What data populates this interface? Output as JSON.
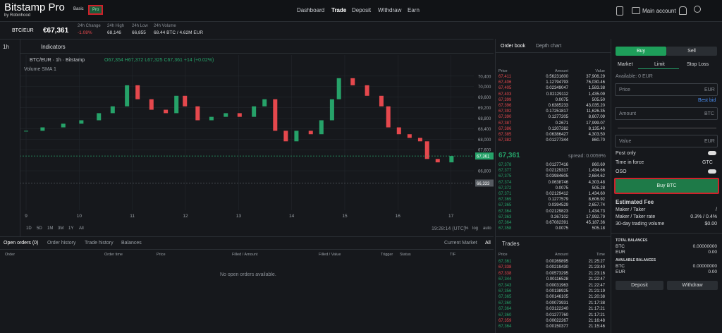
{
  "header": {
    "brand": "Bitstamp Pro",
    "brand_sub": "by Robinhood",
    "modes": [
      "Basic",
      "Pro"
    ],
    "nav": [
      "Dashboard",
      "Trade",
      "Deposit",
      "Withdraw",
      "Earn"
    ],
    "account": "Main account"
  },
  "ticker": {
    "pair": "BTC/EUR",
    "price": "€67,361",
    "stats": [
      {
        "label": "24h Change",
        "value": "-1.08%"
      },
      {
        "label": "24h High",
        "value": "68,146"
      },
      {
        "label": "24h Low",
        "value": "66,855"
      },
      {
        "label": "24h Volume",
        "value": "68.44 BTC / 4.62M EUR"
      }
    ]
  },
  "toolbar": {
    "interval": "1h",
    "indicators": "Indicators"
  },
  "legend": {
    "symbol": "BTC/EUR · 1h · Bitstamp",
    "ohlc": "O67,354 H67,372 L67,325 C67,361 +14 (+0.02%)",
    "volume": "Volume SMA 1"
  },
  "chart_data": {
    "type": "candlestick",
    "x": [
      9.0,
      9.31,
      9.7,
      10.04,
      10.37,
      10.63,
      10.9,
      11.1,
      11.36,
      11.63,
      11.83,
      11.99,
      12.23,
      12.49,
      12.76,
      13.02,
      13.29,
      13.49,
      13.69,
      13.89,
      14.09,
      14.36,
      14.56,
      14.76,
      14.89,
      15.15,
      15.42,
      15.69,
      15.82,
      16.02,
      16.22,
      16.42,
      16.55,
      16.75,
      17.01
    ],
    "values": [
      68320,
      68450,
      68590,
      68720,
      68990,
      69250,
      70050,
      69520,
      69120,
      68990,
      69650,
      69250,
      68720,
      68850,
      68990,
      68850,
      69250,
      69520,
      68320,
      67920,
      68320,
      68190,
      68720,
      69520,
      70320,
      70050,
      69650,
      69250,
      68450,
      68190,
      68050,
      67920,
      67250,
      67120,
      67361
    ],
    "up_color": "#26a269",
    "down_color": "#e5484d",
    "xlim": [
      8.88,
      17.43
    ],
    "xticks": [
      9,
      10,
      11,
      12,
      13,
      14,
      15,
      16,
      17
    ],
    "ylim": [
      65300,
      71200
    ],
    "yticks": [
      {
        "value": 70400,
        "label": "70,400"
      },
      {
        "value": 70000,
        "label": "70,000"
      },
      {
        "value": 69600,
        "label": "69,600"
      },
      {
        "value": 69200,
        "label": "69,200"
      },
      {
        "value": 68800,
        "label": "68,800"
      },
      {
        "value": 68400,
        "label": "68,400"
      },
      {
        "value": 68000,
        "label": "68,000"
      },
      {
        "value": 67600,
        "label": "67,600"
      },
      {
        "value": 66800,
        "label": "66,800"
      }
    ],
    "grid": true,
    "markers": [
      {
        "value": 67361,
        "label": "67,361",
        "color": "#26a269"
      },
      {
        "value": 66333,
        "label": "66,333",
        "color": "#555a60"
      }
    ]
  },
  "chart_footer": {
    "ranges": [
      "1D",
      "5D",
      "1M",
      "3M",
      "1Y",
      "All"
    ],
    "time": "19:28:14 (UTC)",
    "options": [
      "%",
      "log",
      "auto"
    ]
  },
  "orders": {
    "tabs": [
      "Open orders (0)",
      "Order history",
      "Trade history",
      "Balances"
    ],
    "filters": [
      "Current Market",
      "All"
    ],
    "columns": [
      "Order",
      "Order time",
      "Price",
      "Filled / Amount",
      "Filled / Value",
      "Trigger",
      "Status",
      "TIF"
    ],
    "empty": "No open orders available."
  },
  "order_book": {
    "tabs": [
      "Order book",
      "Depth chart"
    ],
    "columns": [
      "Price",
      "Amount",
      "Value"
    ],
    "asks": [
      [
        "67,411",
        "0.56231600",
        "37,906.29"
      ],
      [
        "67,406",
        "1.12794793",
        "76,030.46"
      ],
      [
        "67,405",
        "0.02349047",
        "1,583.38"
      ],
      [
        "67,403",
        "0.02129112",
        "1,435.09"
      ],
      [
        "67,399",
        "0.0075",
        "505.50"
      ],
      [
        "67,396",
        "0.6385233",
        "43,035.20"
      ],
      [
        "67,392",
        "0.17251817",
        "11,626.35"
      ],
      [
        "67,390",
        "0.1277205",
        "8,607.09"
      ],
      [
        "67,387",
        "0.2671",
        "17,999.07"
      ],
      [
        "67,386",
        "0.1207282",
        "8,135.40"
      ],
      [
        "67,385",
        "0.06386427",
        "4,303.50"
      ],
      [
        "67,382",
        "0.01277344",
        "860.70"
      ]
    ],
    "last": "67,361",
    "spread": "spread: 0.0059%",
    "bids": [
      [
        "67,378",
        "0.01277416",
        "860.69"
      ],
      [
        "67,377",
        "0.02129317",
        "1,434.66"
      ],
      [
        "67,375",
        "0.03984605",
        "2,684.62"
      ],
      [
        "67,374",
        "0.0638746",
        "4,303.48"
      ],
      [
        "67,372",
        "0.0075",
        "505.28"
      ],
      [
        "67,371",
        "0.02129412",
        "1,434.60"
      ],
      [
        "67,369",
        "0.1277579",
        "8,606.92"
      ],
      [
        "67,365",
        "0.0394529",
        "2,657.74"
      ],
      [
        "67,364",
        "0.02129823",
        "1,434.73"
      ],
      [
        "67,363",
        "0.267102",
        "17,992.79"
      ],
      [
        "67,364",
        "0.67082391",
        "45,187.36"
      ],
      [
        "67,358",
        "0.0075",
        "505.18"
      ]
    ],
    "ask_color": "#e5484d",
    "bid_color": "#26a269"
  },
  "trades": {
    "title": "Trades",
    "columns": [
      "Price",
      "Amount",
      "Time"
    ],
    "rows": [
      {
        "cells": [
          "67,361",
          "0.00269895",
          "21:25:27"
        ],
        "color": "#26a269"
      },
      {
        "cells": [
          "67,338",
          "0.00219430",
          "21:23:40"
        ],
        "color": "#e5484d"
      },
      {
        "cells": [
          "67,338",
          "0.00573295",
          "21:23:16"
        ],
        "color": "#e5484d"
      },
      {
        "cells": [
          "67,344",
          "0.00116528",
          "21:22:47"
        ],
        "color": "#26a269"
      },
      {
        "cells": [
          "67,343",
          "0.00031963",
          "21:22:47"
        ],
        "color": "#26a269"
      },
      {
        "cells": [
          "67,356",
          "0.00138925",
          "21:21:19"
        ],
        "color": "#26a269"
      },
      {
        "cells": [
          "67,365",
          "0.00146105",
          "21:20:38"
        ],
        "color": "#26a269"
      },
      {
        "cells": [
          "67,360",
          "0.00073931",
          "21:17:38"
        ],
        "color": "#26a269"
      },
      {
        "cells": [
          "67,364",
          "0.03122240",
          "21:17:21"
        ],
        "color": "#26a269"
      },
      {
        "cells": [
          "67,360",
          "0.01277760",
          "21:17:21"
        ],
        "color": "#26a269"
      },
      {
        "cells": [
          "67,359",
          "0.00022267",
          "21:16:48"
        ],
        "color": "#e5484d"
      },
      {
        "cells": [
          "67,364",
          "0.00150377",
          "21:15:46"
        ],
        "color": "#26a269"
      }
    ]
  },
  "trade_form": {
    "sides": [
      "Buy",
      "Sell"
    ],
    "order_types": [
      "Market",
      "Limit",
      "Stop Loss"
    ],
    "available": "Available: 0 EUR",
    "price": "Price",
    "price_unit": "EUR",
    "best_bid": "Best bid",
    "amount": "Amount",
    "amount_unit": "BTC",
    "value": "Value",
    "value_unit": "EUR",
    "post_only": "Post only",
    "time_in_force": "Time in force",
    "tif_value": "GTC",
    "oso": "OSO",
    "submit": "Buy BTC",
    "fee_title": "Estimated Fee",
    "fees": [
      {
        "label": "Maker / Taker",
        "value": "/"
      },
      {
        "label": "Maker / Taker rate",
        "value": "0.3% / 0.4%"
      },
      {
        "label": "30-day trading volume",
        "value": "$0.00"
      }
    ]
  },
  "balances": {
    "total_title": "TOTAL BALANCES",
    "total": [
      {
        "asset": "BTC",
        "amount": "0.00000000"
      },
      {
        "asset": "EUR",
        "amount": "0.00"
      }
    ],
    "available_title": "AVAILABLE BALANCES",
    "available": [
      {
        "asset": "BTC",
        "amount": "0.00000000"
      },
      {
        "asset": "EUR",
        "amount": "0.00"
      }
    ],
    "actions": [
      "Deposit",
      "Withdraw"
    ]
  }
}
